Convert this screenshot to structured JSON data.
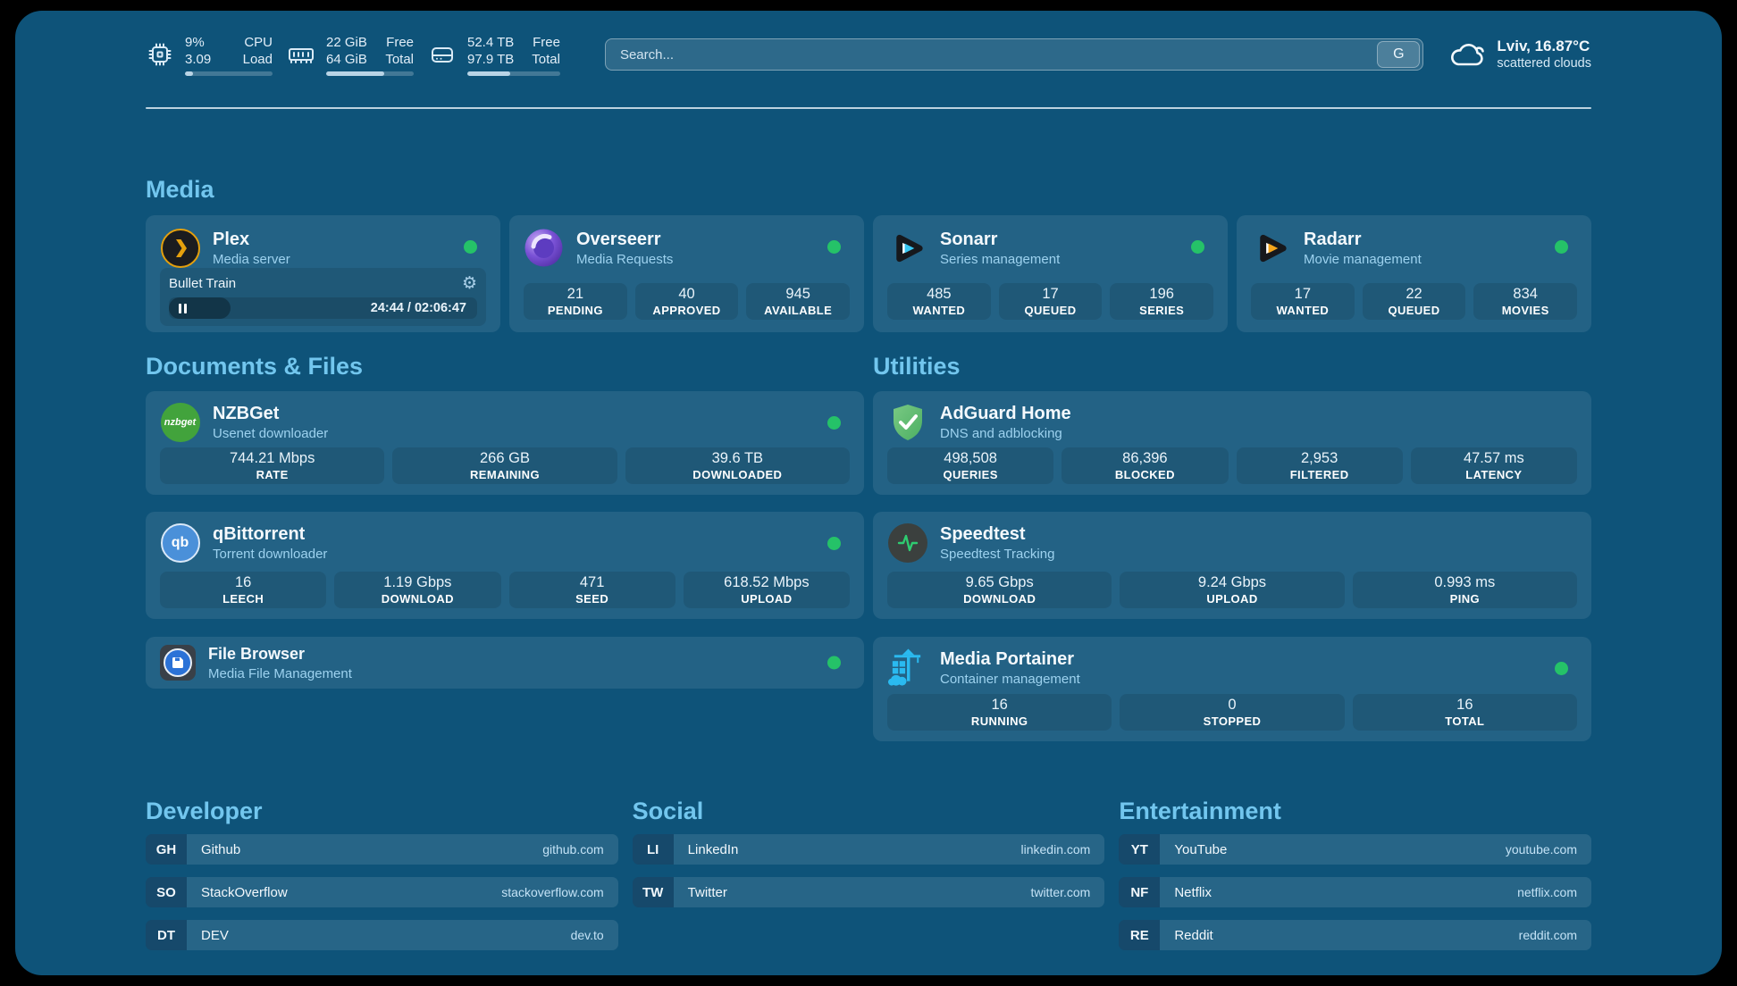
{
  "topbar": {
    "cpu": {
      "value_top": "9%",
      "value_bottom": "3.09",
      "label_top": "CPU",
      "label_bottom": "Load",
      "progress_pct": 9
    },
    "memory": {
      "value_top": "22 GiB",
      "value_bottom": "64 GiB",
      "label_top": "Free",
      "label_bottom": "Total",
      "progress_pct": 66
    },
    "disk": {
      "value_top": "52.4 TB",
      "value_bottom": "97.9 TB",
      "label_top": "Free",
      "label_bottom": "Total",
      "progress_pct": 46
    },
    "search": {
      "placeholder": "Search...",
      "engine_button_label": "G"
    },
    "weather": {
      "location_temp": "Lviv, 16.87°C",
      "condition": "scattered clouds"
    }
  },
  "sections": {
    "media": {
      "header": "Media",
      "plex": {
        "title": "Plex",
        "subtitle": "Media server",
        "session_title": "Bullet Train",
        "time": "24:44 / 02:06:47",
        "progress_pct": 20
      },
      "overseerr": {
        "title": "Overseerr",
        "subtitle": "Media Requests",
        "stats": [
          {
            "value": "21",
            "label": "PENDING"
          },
          {
            "value": "40",
            "label": "APPROVED"
          },
          {
            "value": "945",
            "label": "AVAILABLE"
          }
        ]
      },
      "sonarr": {
        "title": "Sonarr",
        "subtitle": "Series management",
        "stats": [
          {
            "value": "485",
            "label": "WANTED"
          },
          {
            "value": "17",
            "label": "QUEUED"
          },
          {
            "value": "196",
            "label": "SERIES"
          }
        ]
      },
      "radarr": {
        "title": "Radarr",
        "subtitle": "Movie management",
        "stats": [
          {
            "value": "17",
            "label": "WANTED"
          },
          {
            "value": "22",
            "label": "QUEUED"
          },
          {
            "value": "834",
            "label": "MOVIES"
          }
        ]
      }
    },
    "documents": {
      "header": "Documents & Files",
      "nzbget": {
        "title": "NZBGet",
        "subtitle": "Usenet downloader",
        "icon_text": "nzbget",
        "stats": [
          {
            "value": "744.21 Mbps",
            "label": "RATE"
          },
          {
            "value": "266 GB",
            "label": "REMAINING"
          },
          {
            "value": "39.6 TB",
            "label": "DOWNLOADED"
          }
        ]
      },
      "qbittorrent": {
        "title": "qBittorrent",
        "subtitle": "Torrent downloader",
        "icon_text": "qb",
        "stats": [
          {
            "value": "16",
            "label": "LEECH"
          },
          {
            "value": "1.19 Gbps",
            "label": "DOWNLOAD"
          },
          {
            "value": "471",
            "label": "SEED"
          },
          {
            "value": "618.52 Mbps",
            "label": "UPLOAD"
          }
        ]
      },
      "filebrowser": {
        "title": "File Browser",
        "subtitle": "Media File Management"
      }
    },
    "utilities": {
      "header": "Utilities",
      "adguard": {
        "title": "AdGuard Home",
        "subtitle": "DNS and adblocking",
        "stats": [
          {
            "value": "498,508",
            "label": "QUERIES"
          },
          {
            "value": "86,396",
            "label": "BLOCKED"
          },
          {
            "value": "2,953",
            "label": "FILTERED"
          },
          {
            "value": "47.57 ms",
            "label": "LATENCY"
          }
        ]
      },
      "speedtest": {
        "title": "Speedtest",
        "subtitle": "Speedtest Tracking",
        "stats": [
          {
            "value": "9.65 Gbps",
            "label": "DOWNLOAD"
          },
          {
            "value": "9.24 Gbps",
            "label": "UPLOAD"
          },
          {
            "value": "0.993 ms",
            "label": "PING"
          }
        ]
      },
      "portainer": {
        "title": "Media Portainer",
        "subtitle": "Container management",
        "stats": [
          {
            "value": "16",
            "label": "RUNNING"
          },
          {
            "value": "0",
            "label": "STOPPED"
          },
          {
            "value": "16",
            "label": "TOTAL"
          }
        ]
      }
    },
    "bookmarks": {
      "developer": {
        "header": "Developer",
        "items": [
          {
            "abbr": "GH",
            "name": "Github",
            "url": "github.com"
          },
          {
            "abbr": "SO",
            "name": "StackOverflow",
            "url": "stackoverflow.com"
          },
          {
            "abbr": "DT",
            "name": "DEV",
            "url": "dev.to"
          }
        ]
      },
      "social": {
        "header": "Social",
        "items": [
          {
            "abbr": "LI",
            "name": "LinkedIn",
            "url": "linkedin.com"
          },
          {
            "abbr": "TW",
            "name": "Twitter",
            "url": "twitter.com"
          }
        ]
      },
      "entertainment": {
        "header": "Entertainment",
        "items": [
          {
            "abbr": "YT",
            "name": "YouTube",
            "url": "youtube.com"
          },
          {
            "abbr": "NF",
            "name": "Netflix",
            "url": "netflix.com"
          },
          {
            "abbr": "RE",
            "name": "Reddit",
            "url": "reddit.com"
          }
        ]
      }
    }
  },
  "colors": {
    "panel_bg": "#0e5379",
    "status_green": "#25c268",
    "heading_blue": "#72c6ee",
    "plex_orange": "#e5a00d",
    "sonarr_cyan": "#38c6f2",
    "radarr_yellow": "#f5a61c",
    "nzbget_green": "#42a33c",
    "qbittorrent_blue": "#4a90d9",
    "adguard_green": "#57b76c",
    "speedtest_green": "#2ecc71",
    "filebrowser_blue": "#2b72d7",
    "portainer_blue": "#2abaf0"
  }
}
